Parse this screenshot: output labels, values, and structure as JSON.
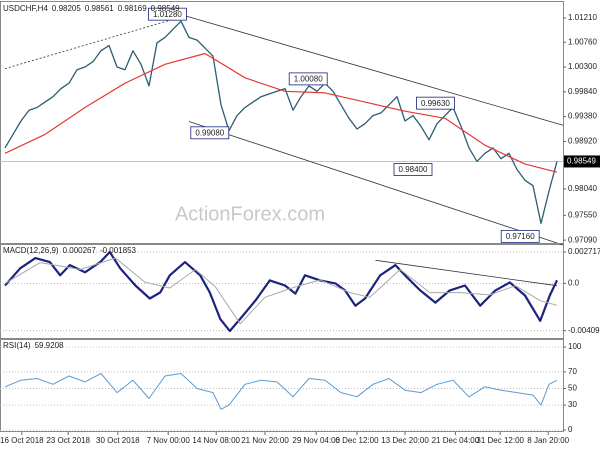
{
  "chart_data": [
    {
      "type": "line",
      "title": "USDCHF,H4",
      "readout": [
        0.98205,
        0.98561,
        0.98169,
        0.98549
      ],
      "watermark": "ActionForex.com",
      "ylim": [
        0.97,
        1.0145
      ],
      "grid": false,
      "yticks": [
        {
          "value": 1.0121,
          "label": "1.01210"
        },
        {
          "value": 1.0076,
          "label": "1.00760"
        },
        {
          "value": 1.003,
          "label": "1.00300"
        },
        {
          "value": 0.9984,
          "label": "0.99840"
        },
        {
          "value": 0.9938,
          "label": "0.99380"
        },
        {
          "value": 0.9892,
          "label": "0.98920"
        },
        {
          "value": 0.9804,
          "label": "0.98040"
        },
        {
          "value": 0.9755,
          "label": "0.97550"
        },
        {
          "value": 0.9709,
          "label": "0.97090"
        }
      ],
      "series": [
        {
          "color": "#2b5d72",
          "width": 1.3,
          "values": [
            0.988,
            0.9905,
            0.993,
            0.995,
            0.9955,
            0.9965,
            0.9975,
            0.999,
            1.0,
            1.0025,
            1.003,
            1.004,
            1.006,
            1.007,
            1.003,
            1.0025,
            1.006,
            1.0035,
            0.9995,
            1.0075,
            1.0085,
            1.01,
            1.0115,
            1.0085,
            1.008,
            1.0065,
            1.005,
            0.996,
            0.9912,
            0.994,
            0.9955,
            0.9965,
            0.9975,
            0.998,
            0.9985,
            0.999,
            0.995,
            0.9975,
            0.9995,
            0.9985,
            1.0,
            0.9985,
            0.996,
            0.9935,
            0.9915,
            0.9925,
            0.994,
            0.9945,
            0.996,
            0.9975,
            0.993,
            0.994,
            0.992,
            0.9895,
            0.9925,
            0.994,
            0.9955,
            0.992,
            0.988,
            0.9855,
            0.987,
            0.988,
            0.986,
            0.987,
            0.984,
            0.982,
            0.981,
            0.974,
            0.98,
            0.9855
          ]
        },
        {
          "color": "#e53935",
          "width": 1.2,
          "x": [
            0,
            5,
            10,
            15,
            20,
            25,
            30,
            35,
            40,
            45,
            50,
            55,
            60,
            65,
            69
          ],
          "values": [
            0.987,
            0.9905,
            0.9955,
            1.0,
            1.0035,
            1.0055,
            1.001,
            0.9985,
            0.9982,
            0.9965,
            0.9948,
            0.9935,
            0.9885,
            0.985,
            0.9835
          ]
        }
      ],
      "trendlines": [
        {
          "style": "dotted",
          "x": [
            0,
            22.5
          ],
          "y": [
            1.0027,
            1.0125
          ]
        },
        {
          "style": "solid",
          "x": [
            22.5,
            69.75
          ],
          "y": [
            1.0125,
            0.9922
          ]
        },
        {
          "style": "solid",
          "x": [
            23,
            69.75
          ],
          "y": [
            0.9929,
            0.97
          ]
        }
      ],
      "annotations": [
        {
          "x": 20.3,
          "value": 1.0128,
          "label": "1.01280"
        },
        {
          "x": 37.9,
          "value": 1.0008,
          "label": "1.00080"
        },
        {
          "x": 25.6,
          "value": 0.9908,
          "label": "0.99080"
        },
        {
          "x": 53.8,
          "value": 0.9963,
          "label": "0.99630"
        },
        {
          "x": 51,
          "value": 0.984,
          "label": "0.98400"
        },
        {
          "x": 64.4,
          "value": 0.9716,
          "label": "0.97160"
        }
      ]
    },
    {
      "type": "line",
      "title": "MACD(12,26,9)",
      "readout": [
        0.000267,
        -0.001853
      ],
      "ylim": [
        -0.0049,
        0.00315
      ],
      "grid": true,
      "yticks": [
        0.002717,
        {
          "value": 0,
          "label": "0.0"
        },
        -0.004093
      ],
      "series": [
        {
          "color": "#1a237e",
          "width": 2.2,
          "x": [
            0,
            1.9,
            3.8,
            5.6,
            6.9,
            8.1,
            10,
            11.9,
            13.1,
            14.4,
            16.3,
            18.1,
            19.4,
            20.6,
            22.5,
            24.4,
            25.6,
            26.9,
            28.1,
            29.4,
            31.3,
            33.1,
            35,
            36.3,
            37.5,
            39.4,
            41.3,
            42.5,
            43.8,
            45,
            46.9,
            48.8,
            50,
            51.9,
            53.8,
            55.6,
            57.5,
            59.4,
            61.3,
            63.1,
            65,
            66.9,
            68.1,
            69
          ],
          "values": [
            -0.00018,
            0.00131,
            0.00219,
            0.00184,
            0.0007,
            0.00158,
            0.00096,
            0.00184,
            0.00272,
            0.00131,
            -0.00018,
            -0.00131,
            -0.00079,
            0.0007,
            0.00184,
            0.0007,
            -0.00079,
            -0.00307,
            -0.00412,
            -0.00307,
            -0.00149,
            0.00026,
            -0.00018,
            -0.00088,
            0.0007,
            0.00026,
            0,
            -0.00061,
            -0.00193,
            -0.00131,
            0.0007,
            0.00158,
            0.0007,
            -0.00061,
            -0.00166,
            -0.00061,
            -0.00018,
            -0.00193,
            -0.00061,
            9e-05,
            -0.00105,
            -0.00324,
            -0.00105,
            0.00027
          ]
        },
        {
          "color": "#a8a8a8",
          "width": 1,
          "x": [
            0,
            4.4,
            9.4,
            13.8,
            17.5,
            20.6,
            23.8,
            26.3,
            29.4,
            32.5,
            36.3,
            39.4,
            43.1,
            45.6,
            49.4,
            53.1,
            56.9,
            60.6,
            63.8,
            66.9,
            69
          ],
          "values": [
            0,
            0.0018,
            0.0012,
            0.0022,
            0.0001,
            -0.0004,
            0.0012,
            -0.0003,
            -0.0035,
            -0.0012,
            -0.0003,
            0.0003,
            -0.0008,
            -0.0012,
            0.0012,
            -0.0008,
            -0.0008,
            -0.001,
            -0.0002,
            -0.0015,
            -0.0019
          ]
        }
      ],
      "trendlines": [
        {
          "style": "solid",
          "x": [
            46.3,
            69
          ],
          "y": [
            0.002,
            -0.0002
          ]
        }
      ]
    },
    {
      "type": "line",
      "title": "RSI(14)",
      "readout": [
        59.9208
      ],
      "ylim": [
        -2.4,
        106
      ],
      "grid": true,
      "yticks": [
        100,
        70,
        50,
        30,
        0
      ],
      "series": [
        {
          "color": "#5b9bd5",
          "width": 1,
          "x": [
            0,
            2,
            4,
            6,
            8,
            10,
            12,
            14,
            16,
            18,
            20,
            22,
            24,
            26,
            27,
            28,
            30,
            32,
            34,
            36,
            38,
            40,
            42,
            44,
            46,
            48,
            50,
            52,
            54,
            56,
            58,
            60,
            62,
            64,
            66,
            67,
            68,
            69
          ],
          "values": [
            52,
            60,
            62,
            55,
            65,
            58,
            68,
            45,
            60,
            38,
            65,
            68,
            50,
            45,
            25,
            30,
            55,
            60,
            58,
            40,
            62,
            60,
            45,
            40,
            55,
            62,
            48,
            45,
            55,
            60,
            40,
            52,
            48,
            45,
            42,
            30,
            55,
            59.9208
          ]
        }
      ],
      "xticks": [
        {
          "value": 2.1,
          "label": "16 Oct 2018"
        },
        {
          "value": 7.9,
          "label": "23 Oct 2018"
        },
        {
          "value": 14.1,
          "label": "30 Oct 2018"
        },
        {
          "value": 20.4,
          "label": "7 Nov 00:00"
        },
        {
          "value": 26.4,
          "label": "14 Nov 08:00"
        },
        {
          "value": 32.5,
          "label": "21 Nov 20:00"
        },
        {
          "value": 38.9,
          "label": "29 Nov 04:00"
        },
        {
          "value": 44,
          "label": "6 Dec 12:00"
        },
        {
          "value": 50,
          "label": "13 Dec 20:00"
        },
        {
          "value": 56.3,
          "label": "21 Dec 04:00"
        },
        {
          "value": 61.9,
          "label": "31 Dec 12:00"
        },
        {
          "value": 67.9,
          "label": "8 Jan 20:00"
        }
      ]
    }
  ]
}
